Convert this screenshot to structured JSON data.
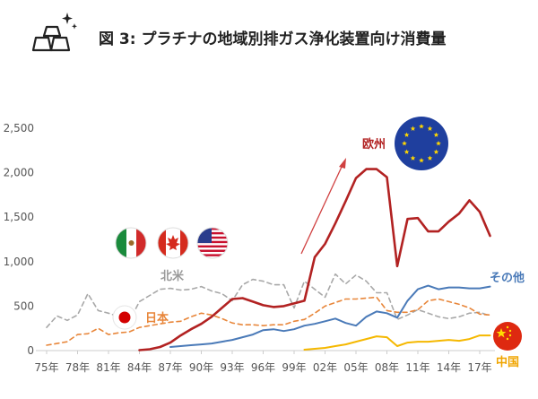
{
  "header": {
    "title": "図 3: プラチナの地域別排ガス浄化装置向け消費量",
    "icon": "gold-bars-icon"
  },
  "chart_data": {
    "type": "line",
    "title": "図 3: プラチナの地域別排ガス浄化装置向け消費量",
    "xlabel": "",
    "ylabel": "",
    "ylim": [
      0,
      2500
    ],
    "yticks": [
      0,
      500,
      1000,
      1500,
      2000,
      2500
    ],
    "ytick_labels": [
      "0",
      "500",
      "1,000",
      "1,500",
      "2,000",
      "2,500"
    ],
    "xtick_labels": [
      "75年",
      "78年",
      "81年",
      "84年",
      "87年",
      "90年",
      "93年",
      "96年",
      "99年",
      "02年",
      "05年",
      "08年",
      "11年",
      "14年",
      "17年"
    ],
    "x": [
      1975,
      1976,
      1977,
      1978,
      1979,
      1980,
      1981,
      1982,
      1983,
      1984,
      1985,
      1986,
      1987,
      1988,
      1989,
      1990,
      1991,
      1992,
      1993,
      1994,
      1995,
      1996,
      1997,
      1998,
      1999,
      2000,
      2001,
      2002,
      2003,
      2004,
      2005,
      2006,
      2007,
      2008,
      2009,
      2010,
      2011,
      2012,
      2013,
      2014,
      2015,
      2016,
      2017,
      2018
    ],
    "grid": false,
    "legend": "inline labels",
    "series": [
      {
        "name": "欧州",
        "color": "#b22222",
        "values": [
          null,
          null,
          null,
          null,
          null,
          null,
          null,
          null,
          null,
          5,
          15,
          40,
          90,
          170,
          240,
          300,
          380,
          480,
          580,
          590,
          550,
          510,
          490,
          500,
          530,
          560,
          1050,
          1200,
          1430,
          1680,
          1940,
          2040,
          2040,
          1950,
          950,
          1480,
          1490,
          1340,
          1340,
          1450,
          1540,
          1690,
          1560,
          1290
        ]
      },
      {
        "name": "北米",
        "color": "#a8a8a8",
        "dashed": true,
        "values": [
          260,
          390,
          340,
          400,
          640,
          450,
          420,
          380,
          330,
          550,
          620,
          690,
          700,
          680,
          690,
          720,
          670,
          640,
          560,
          740,
          800,
          780,
          740,
          740,
          480,
          780,
          690,
          600,
          860,
          750,
          850,
          780,
          650,
          650,
          350,
          400,
          460,
          420,
          380,
          360,
          380,
          420,
          430,
          390
        ]
      },
      {
        "name": "日本",
        "color": "#e8863a",
        "dashed": true,
        "values": [
          60,
          80,
          100,
          180,
          190,
          250,
          180,
          200,
          210,
          260,
          280,
          300,
          320,
          330,
          380,
          420,
          400,
          360,
          310,
          290,
          290,
          280,
          290,
          290,
          330,
          350,
          420,
          500,
          540,
          580,
          580,
          590,
          600,
          450,
          430,
          430,
          460,
          560,
          580,
          550,
          520,
          480,
          410,
          400
        ]
      },
      {
        "name": "その他",
        "color": "#4a7ab8",
        "values": [
          null,
          null,
          null,
          null,
          null,
          null,
          null,
          null,
          null,
          null,
          null,
          null,
          40,
          50,
          60,
          70,
          80,
          100,
          120,
          150,
          180,
          230,
          240,
          220,
          240,
          280,
          300,
          330,
          360,
          310,
          280,
          380,
          440,
          420,
          370,
          560,
          690,
          730,
          690,
          710,
          710,
          700,
          700,
          720
        ]
      },
      {
        "name": "中国",
        "color": "#f5b800",
        "values": [
          null,
          null,
          null,
          null,
          null,
          null,
          null,
          null,
          null,
          null,
          null,
          null,
          null,
          null,
          null,
          null,
          null,
          null,
          null,
          null,
          null,
          null,
          null,
          null,
          null,
          10,
          20,
          30,
          50,
          70,
          100,
          130,
          160,
          150,
          50,
          90,
          100,
          100,
          110,
          120,
          110,
          130,
          170,
          170
        ]
      }
    ]
  }
}
